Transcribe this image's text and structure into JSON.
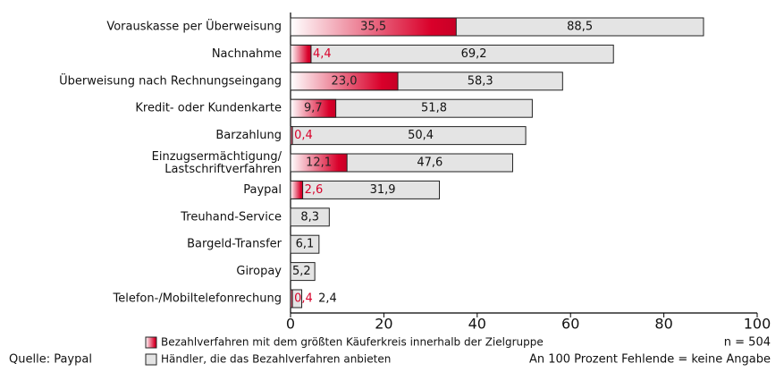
{
  "chart_data": {
    "type": "bar",
    "categories": [
      "Vorauskasse per Überweisung",
      "Nachnahme",
      "Überweisung nach Rechnungseingang",
      "Kredit- oder Kundenkarte",
      "Barzahlung",
      "Einzugsermächtigung/\nLastschriftverfahren",
      "Paypal",
      "Treuhand-Service",
      "Bargeld-Transfer",
      "Giropay",
      "Telefon-/Mobiltelefonrechung"
    ],
    "series": [
      {
        "name": "Bezahlverfahren mit dem größten Käuferkreis innerhalb der Zielgruppe",
        "color": "#d9002a",
        "values": [
          35.5,
          4.4,
          23.0,
          9.7,
          0.4,
          12.1,
          2.6,
          null,
          null,
          null,
          0.4
        ],
        "value_labels": [
          "35,5",
          "4,4",
          "23,0",
          "9,7",
          "0,4",
          "12,1",
          "2,6",
          null,
          null,
          null,
          "0,4"
        ]
      },
      {
        "name": "Händler, die das Bezahlverfahren anbieten",
        "color": "#e4e4e4",
        "values": [
          88.5,
          69.2,
          58.3,
          51.8,
          50.4,
          47.6,
          31.9,
          8.3,
          6.1,
          5.2,
          2.4
        ],
        "value_labels": [
          "88,5",
          "69,2",
          "58,3",
          "51,8",
          "50,4",
          "47,6",
          "31,9",
          "8,3",
          "6,1",
          "5,2",
          "2,4"
        ]
      }
    ],
    "xlim": [
      0,
      100
    ],
    "xticks": [
      0,
      20,
      40,
      60,
      80,
      100
    ],
    "source": "Quelle: Paypal",
    "sample": "n = 504",
    "footnote": "An 100 Prozent Fehlende = keine Angabe"
  }
}
